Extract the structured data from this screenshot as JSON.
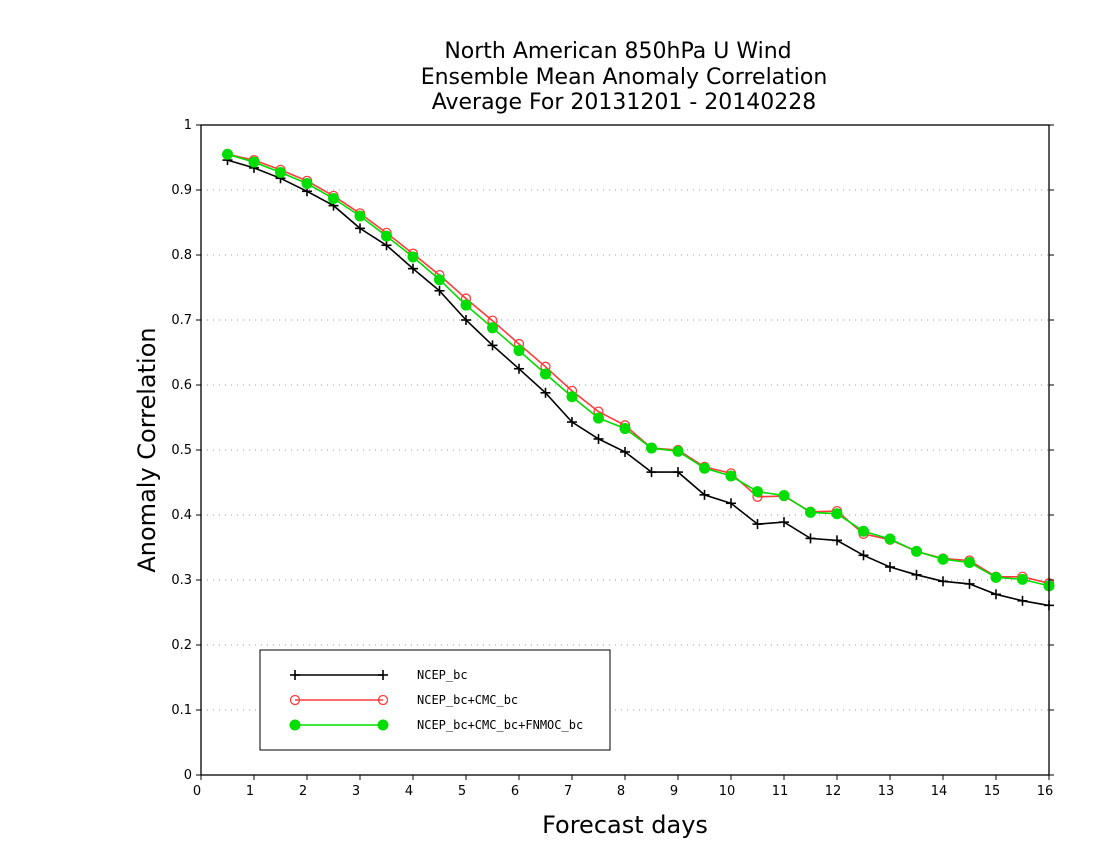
{
  "chart_data": {
    "type": "line",
    "title_lines": [
      "North American 850hPa U Wind",
      "Ensemble Mean Anomaly Correlation",
      "Average For 20131201 - 20140228"
    ],
    "xlabel": "Forecast days",
    "ylabel": "Anomaly Correlation",
    "xlim": [
      0,
      16
    ],
    "ylim": [
      0,
      1
    ],
    "x_ticks": [
      "0",
      "1",
      "2",
      "3",
      "4",
      "5",
      "6",
      "7",
      "8",
      "9",
      "10",
      "11",
      "12",
      "13",
      "14",
      "15",
      "16"
    ],
    "y_ticks": [
      "0",
      "0.1",
      "0.2",
      "0.3",
      "0.4",
      "0.5",
      "0.6",
      "0.7",
      "0.8",
      "0.9",
      "1"
    ],
    "grid": "horizontal dotted",
    "legend_position": "bottom-left",
    "x": [
      0.5,
      1,
      1.5,
      2,
      2.5,
      3,
      3.5,
      4,
      4.5,
      5,
      5.5,
      6,
      6.5,
      7,
      7.5,
      8,
      8.5,
      9,
      9.5,
      10,
      10.5,
      11,
      11.5,
      12,
      12.5,
      13,
      13.5,
      14,
      14.5,
      15,
      15.5,
      16
    ],
    "series": [
      {
        "name": "NCEP_bc",
        "color": "#000000",
        "marker": "plus",
        "values": [
          0.946,
          0.934,
          0.918,
          0.898,
          0.876,
          0.841,
          0.815,
          0.779,
          0.745,
          0.7,
          0.661,
          0.625,
          0.588,
          0.543,
          0.517,
          0.497,
          0.466,
          0.466,
          0.431,
          0.418,
          0.386,
          0.389,
          0.364,
          0.361,
          0.338,
          0.32,
          0.308,
          0.298,
          0.294,
          0.278,
          0.268,
          0.261
        ]
      },
      {
        "name": "NCEP_bc+CMC_bc",
        "color": "#ff3b3b",
        "marker": "open-circle",
        "values": [
          0.955,
          0.946,
          0.931,
          0.914,
          0.891,
          0.864,
          0.834,
          0.802,
          0.769,
          0.733,
          0.699,
          0.663,
          0.628,
          0.591,
          0.559,
          0.538,
          0.503,
          0.5,
          0.474,
          0.464,
          0.428,
          0.429,
          0.405,
          0.406,
          0.371,
          0.362,
          0.344,
          0.333,
          0.33,
          0.305,
          0.305,
          0.295
        ]
      },
      {
        "name": "NCEP_bc+CMC_bc+FNMOC_bc",
        "color": "#00dd00",
        "marker": "filled-circle",
        "values": [
          0.955,
          0.943,
          0.927,
          0.91,
          0.887,
          0.86,
          0.829,
          0.797,
          0.762,
          0.723,
          0.688,
          0.653,
          0.617,
          0.582,
          0.549,
          0.533,
          0.503,
          0.498,
          0.472,
          0.46,
          0.436,
          0.43,
          0.404,
          0.402,
          0.375,
          0.363,
          0.344,
          0.332,
          0.327,
          0.304,
          0.301,
          0.291
        ]
      }
    ]
  }
}
